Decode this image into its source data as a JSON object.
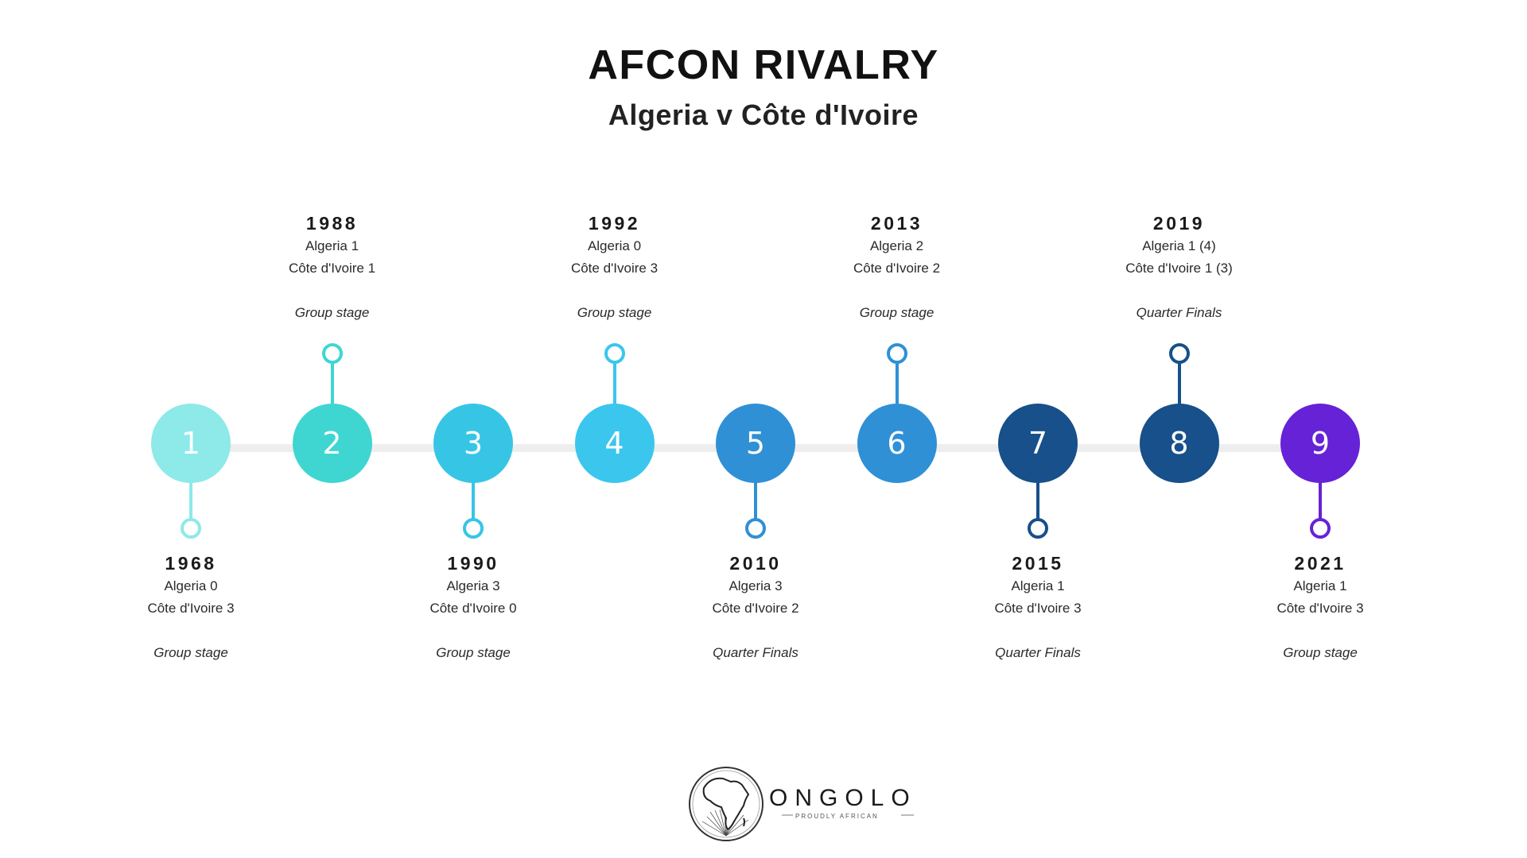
{
  "header": {
    "title": "AFCON RIVALRY",
    "subtitle": "Algeria v Côte d'Ivoire"
  },
  "events": [
    {
      "num": "1",
      "year": "1968",
      "line1": "Algeria 0",
      "line2": "Côte d'Ivoire 3",
      "stage": "Group stage",
      "side": "below",
      "color": "#8ee9e9"
    },
    {
      "num": "2",
      "year": "1988",
      "line1": "Algeria 1",
      "line2": "Côte d'Ivoire 1",
      "stage": "Group stage",
      "side": "above",
      "color": "#3fd6d2"
    },
    {
      "num": "3",
      "year": "1990",
      "line1": "Algeria 3",
      "line2": "Côte d'Ivoire 0",
      "stage": "Group stage",
      "side": "below",
      "color": "#37c5e6"
    },
    {
      "num": "4",
      "year": "1992",
      "line1": "Algeria 0",
      "line2": "Côte d'Ivoire 3",
      "stage": "Group stage",
      "side": "above",
      "color": "#3bc6ee"
    },
    {
      "num": "5",
      "year": "2010",
      "line1": "Algeria 3",
      "line2": "Côte d'Ivoire 2",
      "stage": "Quarter Finals",
      "side": "below",
      "color": "#2f90d6"
    },
    {
      "num": "6",
      "year": "2013",
      "line1": "Algeria 2",
      "line2": "Côte d'Ivoire 2",
      "stage": "Group stage",
      "side": "above",
      "color": "#2f90d6"
    },
    {
      "num": "7",
      "year": "2015",
      "line1": "Algeria 1",
      "line2": "Côte d'Ivoire 3",
      "stage": "Quarter Finals",
      "side": "below",
      "color": "#17508a"
    },
    {
      "num": "8",
      "year": "2019",
      "line1": "Algeria 1 (4)",
      "line2": "Côte d'Ivoire 1 (3)",
      "stage": "Quarter Finals",
      "side": "above",
      "color": "#17508a"
    },
    {
      "num": "9",
      "year": "2021",
      "line1": "Algeria 1",
      "line2": "Côte d'Ivoire 3",
      "stage": "Group stage",
      "side": "below",
      "color": "#6622d6"
    }
  ],
  "brand": {
    "name": "ONGOLO",
    "tagline": "PROUDLY AFRICAN",
    "icon": "africa-globe-icon"
  }
}
